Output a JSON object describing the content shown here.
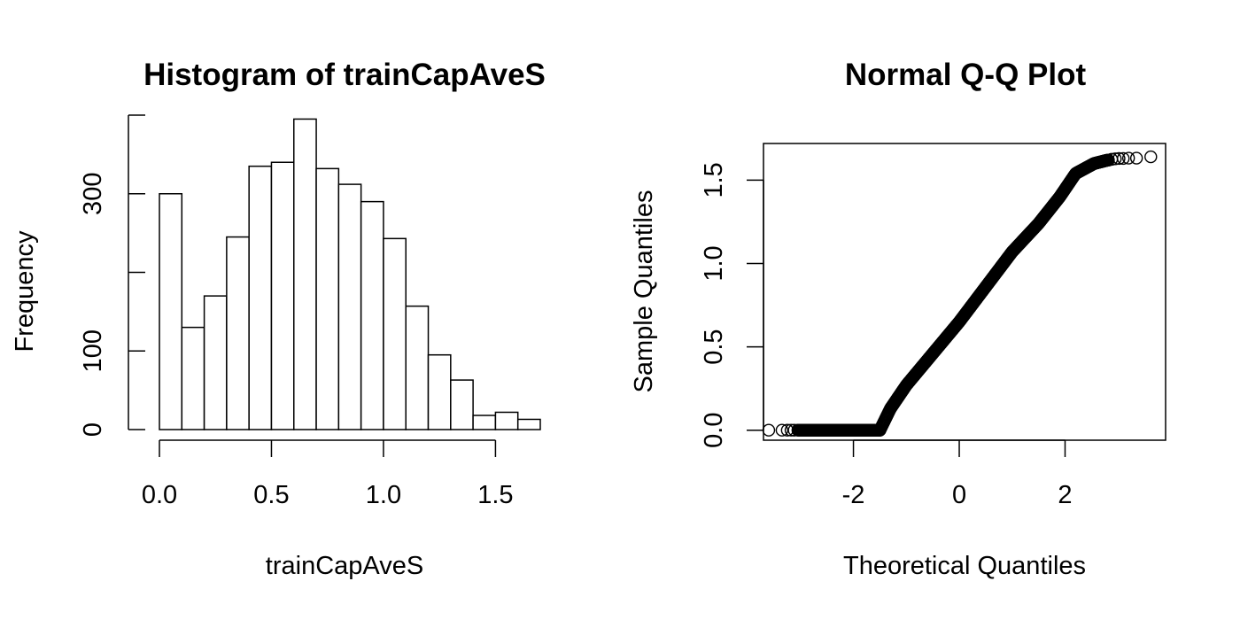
{
  "chart_data": [
    {
      "type": "bar",
      "subtype": "histogram",
      "title": "Histogram of trainCapAveS",
      "xlabel": "trainCapAveS",
      "ylabel": "Frequency",
      "xlim": [
        0,
        1.7
      ],
      "ylim": [
        0,
        400
      ],
      "x_ticks": [
        0.0,
        0.5,
        1.0,
        1.5
      ],
      "x_tick_labels": [
        "0.0",
        "0.5",
        "1.0",
        "1.5"
      ],
      "y_ticks": [
        0,
        100,
        200,
        300,
        400
      ],
      "y_tick_labels": [
        "0",
        "100",
        "",
        "300",
        ""
      ],
      "bin_width": 0.1,
      "bin_starts": [
        0.0,
        0.1,
        0.2,
        0.3,
        0.4,
        0.5,
        0.6,
        0.7,
        0.8,
        0.9,
        1.0,
        1.1,
        1.2,
        1.3,
        1.4,
        1.5,
        1.6
      ],
      "values": [
        300,
        130,
        170,
        245,
        335,
        340,
        395,
        332,
        312,
        290,
        243,
        157,
        95,
        63,
        18,
        22,
        13
      ],
      "grid": false,
      "legend": false
    },
    {
      "type": "scatter",
      "subtype": "qq-plot",
      "title": "Normal Q-Q Plot",
      "xlabel": "Theoretical Quantiles",
      "ylabel": "Sample Quantiles",
      "xlim": [
        -3.7,
        3.9
      ],
      "ylim": [
        -0.06,
        1.72
      ],
      "x_ticks": [
        -2,
        0,
        2
      ],
      "x_tick_labels": [
        "-2",
        "0",
        "2"
      ],
      "y_ticks": [
        0.0,
        0.5,
        1.0,
        1.5
      ],
      "y_tick_labels": [
        "0.0",
        "0.5",
        "1.0",
        "1.5"
      ],
      "marker": "open-circle",
      "zero_cluster": {
        "x_min": -3.05,
        "x_max": -1.5,
        "y": 0,
        "count": 110
      },
      "zero_outliers": [
        {
          "x": -3.6,
          "y": 0
        },
        {
          "x": -3.35,
          "y": 0
        },
        {
          "x": -3.25,
          "y": 0
        },
        {
          "x": -3.18,
          "y": 0
        },
        {
          "x": -3.12,
          "y": 0
        }
      ],
      "curve": [
        [
          -1.5,
          0.0
        ],
        [
          -1.3,
          0.13
        ],
        [
          -1.0,
          0.27
        ],
        [
          -0.5,
          0.46
        ],
        [
          0.0,
          0.65
        ],
        [
          0.5,
          0.86
        ],
        [
          1.0,
          1.07
        ],
        [
          1.5,
          1.24
        ],
        [
          1.9,
          1.4
        ],
        [
          2.2,
          1.54
        ],
        [
          2.55,
          1.6
        ],
        [
          2.8,
          1.62
        ]
      ],
      "curve_count": 400,
      "upper_points": [
        {
          "x": 2.82,
          "y": 1.62
        },
        {
          "x": 2.88,
          "y": 1.625
        },
        {
          "x": 2.95,
          "y": 1.628
        },
        {
          "x": 3.02,
          "y": 1.63
        },
        {
          "x": 3.1,
          "y": 1.63
        },
        {
          "x": 3.2,
          "y": 1.632
        },
        {
          "x": 3.35,
          "y": 1.632
        },
        {
          "x": 3.62,
          "y": 1.64
        }
      ],
      "grid": false,
      "legend": false,
      "box": true
    }
  ]
}
